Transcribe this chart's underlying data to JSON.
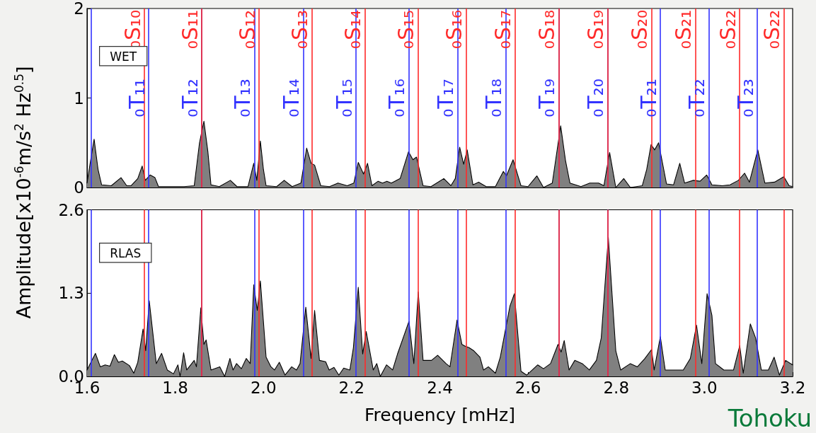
{
  "chart_data": [
    {
      "type": "area",
      "ylabel": "Amplitude[x10$^{-6}$m/s$^{2}$ Hz$^{0.5}$]",
      "xlim": [
        1.6,
        3.2
      ],
      "ylim": [
        0,
        2
      ],
      "yticks": [
        0,
        1,
        2
      ],
      "tick_labels": "y",
      "annotations": [
        "WET"
      ],
      "series": [
        {
          "color": "#808080",
          "x": [
            1.6,
            1.608,
            1.616,
            1.625,
            1.633,
            1.655,
            1.677,
            1.69,
            1.7,
            1.715,
            1.725,
            1.732,
            1.743,
            1.754,
            1.762,
            1.78,
            1.82,
            1.843,
            1.855,
            1.865,
            1.874,
            1.881,
            1.9,
            1.925,
            1.94,
            1.965,
            1.978,
            1.985,
            1.993,
            2.0,
            2.006,
            2.03,
            2.047,
            2.065,
            2.085,
            2.098,
            2.108,
            2.116,
            2.13,
            2.15,
            2.169,
            2.19,
            2.205,
            2.215,
            2.227,
            2.236,
            2.246,
            2.26,
            2.27,
            2.28,
            2.29,
            2.31,
            2.329,
            2.339,
            2.347,
            2.362,
            2.38,
            2.409,
            2.425,
            2.435,
            2.445,
            2.454,
            2.462,
            2.475,
            2.488,
            2.505,
            2.526,
            2.544,
            2.551,
            2.566,
            2.584,
            2.6,
            2.62,
            2.635,
            2.655,
            2.674,
            2.685,
            2.695,
            2.72,
            2.74,
            2.76,
            2.772,
            2.785,
            2.799,
            2.817,
            2.832,
            2.859,
            2.869,
            2.879,
            2.887,
            2.896,
            2.914,
            2.93,
            2.944,
            2.955,
            2.975,
            2.99,
            3.005,
            3.017,
            3.04,
            3.058,
            3.077,
            3.091,
            3.102,
            3.121,
            3.137,
            3.159,
            3.18,
            3.192,
            3.2
          ],
          "values": [
            0.05,
            0.3,
            0.54,
            0.2,
            0.03,
            0.02,
            0.11,
            0.02,
            0.02,
            0.1,
            0.24,
            0.08,
            0.14,
            0.11,
            0.01,
            0.01,
            0.01,
            0.02,
            0.5,
            0.74,
            0.4,
            0.03,
            0.01,
            0.08,
            0.01,
            0.01,
            0.27,
            0.08,
            0.52,
            0.2,
            0.02,
            0.01,
            0.08,
            0.01,
            0.05,
            0.44,
            0.27,
            0.25,
            0.02,
            0.01,
            0.05,
            0.02,
            0.05,
            0.28,
            0.15,
            0.27,
            0.02,
            0.07,
            0.05,
            0.07,
            0.05,
            0.1,
            0.4,
            0.31,
            0.34,
            0.02,
            0.01,
            0.1,
            0.02,
            0.1,
            0.45,
            0.26,
            0.42,
            0.03,
            0.06,
            0.01,
            0.01,
            0.18,
            0.13,
            0.31,
            0.02,
            0.01,
            0.13,
            0.0,
            0.05,
            0.69,
            0.3,
            0.05,
            0.01,
            0.05,
            0.05,
            0.02,
            0.39,
            0.0,
            0.1,
            0.0,
            0.02,
            0.2,
            0.48,
            0.42,
            0.5,
            0.04,
            0.03,
            0.27,
            0.05,
            0.08,
            0.07,
            0.14,
            0.03,
            0.02,
            0.03,
            0.08,
            0.16,
            0.06,
            0.42,
            0.05,
            0.06,
            0.12,
            0.02,
            0.01
          ]
        }
      ],
      "ref_lines": [
        {
          "axis": "x",
          "value": 1.611,
          "label": null,
          "color": "#3333ff"
        },
        {
          "axis": "x",
          "value": 1.736,
          "label": "₀T₁₁",
          "color": "#3333ff"
        },
        {
          "axis": "x",
          "value": 1.858,
          "label": "₀T₁₂",
          "color": "#3333ff"
        },
        {
          "axis": "x",
          "value": 1.977,
          "label": "₀T₁₃",
          "color": "#3333ff"
        },
        {
          "axis": "x",
          "value": 2.094,
          "label": "₀T₁₄",
          "color": "#3333ff"
        },
        {
          "axis": "x",
          "value": 2.21,
          "label": "₀T₁₅",
          "color": "#3333ff"
        },
        {
          "axis": "x",
          "value": 2.325,
          "label": "₀T₁₆",
          "color": "#3333ff"
        },
        {
          "axis": "x",
          "value": 2.439,
          "label": "₀T₁₇",
          "color": "#3333ff"
        },
        {
          "axis": "x",
          "value": 2.553,
          "label": "₀T₁₈",
          "color": "#3333ff"
        },
        {
          "axis": "x",
          "value": 2.667,
          "label": "₀T₁₉",
          "color": "#3333ff"
        },
        {
          "axis": "x",
          "value": 2.776,
          "label": "₀T₂₀",
          "color": "#3333ff"
        },
        {
          "axis": "x",
          "value": 2.899,
          "label": "₀T₂₁",
          "color": "#3333ff"
        },
        {
          "axis": "x",
          "value": 3.011,
          "label": "₀T₂₂",
          "color": "#3333ff"
        },
        {
          "axis": "x",
          "value": 3.123,
          "label": "₀T₂₃",
          "color": "#3333ff"
        },
        {
          "axis": "x",
          "value": 1.727,
          "label": "₀S₁₀",
          "color": "#ff2a2a"
        },
        {
          "axis": "x",
          "value": 1.86,
          "label": "₀S₁₁",
          "color": "#ff2a2a"
        },
        {
          "axis": "x",
          "value": 1.992,
          "label": "₀S₁₂",
          "color": "#ff2a2a"
        },
        {
          "axis": "x",
          "value": 2.114,
          "label": "₀S₁₃",
          "color": "#ff2a2a"
        },
        {
          "axis": "x",
          "value": 2.234,
          "label": "₀S₁₄",
          "color": "#ff2a2a"
        },
        {
          "axis": "x",
          "value": 2.35,
          "label": "₀S₁₅",
          "color": "#ff2a2a"
        },
        {
          "axis": "x",
          "value": 2.461,
          "label": "₀S₁₆",
          "color": "#ff2a2a"
        },
        {
          "axis": "x",
          "value": 2.57,
          "label": "₀S₁₇",
          "color": "#ff2a2a"
        },
        {
          "axis": "x",
          "value": 2.675,
          "label": "₀S₁₈",
          "color": "#ff2a2a"
        },
        {
          "axis": "x",
          "value": 2.78,
          "label": "₀S₁₉",
          "color": "#ff2a2a"
        },
        {
          "axis": "x",
          "value": 2.881,
          "label": "₀S₂₀",
          "color": "#ff2a2a"
        },
        {
          "axis": "x",
          "value": 2.982,
          "label": "₀S₂₁",
          "color": "#ff2a2a"
        },
        {
          "axis": "x",
          "value": 3.08,
          "label": "₀S₂₂",
          "color": "#ff2a2a"
        },
        {
          "axis": "x",
          "value": 3.176,
          "label": "₀S₂₂",
          "color": "#ff2a2a"
        }
      ]
    },
    {
      "type": "area",
      "xlabel": "Frequency [mHz]",
      "xlim": [
        1.6,
        3.2
      ],
      "xticks": [
        1.6,
        1.8,
        {
          "value": 2,
          "label": "2.0"
        },
        2.2,
        2.4,
        2.6,
        2.8,
        {
          "value": 3,
          "label": "3.0"
        },
        3.2
      ],
      "ylim": [
        0,
        2.6
      ],
      "yticks": [
        {
          "value": 0,
          "label": "0.0"
        },
        1.3,
        2.6
      ],
      "annotations": [
        "RLAS",
        "Tohoku"
      ],
      "series": [
        {
          "color": "#808080",
          "x": [
            1.6,
            1.619,
            1.63,
            1.641,
            1.652,
            1.662,
            1.671,
            1.68,
            1.696,
            1.706,
            1.715,
            1.727,
            1.733,
            1.741,
            1.757,
            1.769,
            1.782,
            1.796,
            1.806,
            1.811,
            1.819,
            1.826,
            1.843,
            1.848,
            1.858,
            1.865,
            1.87,
            1.881,
            1.901,
            1.912,
            1.924,
            1.931,
            1.939,
            1.95,
            1.961,
            1.97,
            1.978,
            1.986,
            1.993,
            2.006,
            2.017,
            2.025,
            2.036,
            2.049,
            2.064,
            2.075,
            2.083,
            2.096,
            2.108,
            2.116,
            2.127,
            2.141,
            2.149,
            2.16,
            2.171,
            2.182,
            2.196,
            2.204,
            2.215,
            2.225,
            2.233,
            2.249,
            2.257,
            2.265,
            2.279,
            2.293,
            2.304,
            2.33,
            2.341,
            2.351,
            2.362,
            2.381,
            2.395,
            2.414,
            2.423,
            2.439,
            2.45,
            2.458,
            2.466,
            2.477,
            2.491,
            2.499,
            2.51,
            2.526,
            2.537,
            2.548,
            2.559,
            2.569,
            2.584,
            2.597,
            2.622,
            2.635,
            2.651,
            2.668,
            2.675,
            2.682,
            2.693,
            2.706,
            2.723,
            2.739,
            2.755,
            2.766,
            2.782,
            2.799,
            2.81,
            2.832,
            2.848,
            2.865,
            2.88,
            2.886,
            2.9,
            2.911,
            2.933,
            2.952,
            2.968,
            2.982,
            2.994,
            3.006,
            3.017,
            3.025,
            3.044,
            3.066,
            3.08,
            3.088,
            3.104,
            3.116,
            3.129,
            3.145,
            3.158,
            3.17,
            3.184,
            3.2
          ],
          "values": [
            0.1,
            0.36,
            0.15,
            0.18,
            0.16,
            0.34,
            0.22,
            0.24,
            0.17,
            0.05,
            0.22,
            0.74,
            0.4,
            1.18,
            0.2,
            0.36,
            0.1,
            0.04,
            0.18,
            0.0,
            0.37,
            0.1,
            0.25,
            0.15,
            1.07,
            0.5,
            0.57,
            0.1,
            0.15,
            0.0,
            0.28,
            0.1,
            0.2,
            0.12,
            0.28,
            0.2,
            1.43,
            1.03,
            1.49,
            0.3,
            0.15,
            0.1,
            0.22,
            0.02,
            0.15,
            0.1,
            0.2,
            1.08,
            0.28,
            1.03,
            0.25,
            0.23,
            0.1,
            0.14,
            0.02,
            0.13,
            0.1,
            0.45,
            1.39,
            0.35,
            0.7,
            0.1,
            0.2,
            0.0,
            0.18,
            0.1,
            0.35,
            0.86,
            0.2,
            1.32,
            0.25,
            0.25,
            0.33,
            0.2,
            0.15,
            0.88,
            0.5,
            0.47,
            0.45,
            0.4,
            0.3,
            0.1,
            0.15,
            0.05,
            0.3,
            0.7,
            1.1,
            1.29,
            0.08,
            0.02,
            0.18,
            0.12,
            0.2,
            0.5,
            0.38,
            0.56,
            0.1,
            0.25,
            0.2,
            0.1,
            0.25,
            0.6,
            2.17,
            0.4,
            0.1,
            0.2,
            0.15,
            0.28,
            0.42,
            0.1,
            0.62,
            0.1,
            0.1,
            0.1,
            0.28,
            0.8,
            0.2,
            1.29,
            0.95,
            0.2,
            0.1,
            0.1,
            0.48,
            0.05,
            0.82,
            0.6,
            0.1,
            0.1,
            0.3,
            0.02,
            0.25,
            0.18
          ]
        }
      ],
      "ref_lines": [
        {
          "axis": "x",
          "value": 1.611,
          "color": "#3333ff"
        },
        {
          "axis": "x",
          "value": 1.736,
          "color": "#3333ff"
        },
        {
          "axis": "x",
          "value": 1.858,
          "color": "#3333ff"
        },
        {
          "axis": "x",
          "value": 1.977,
          "color": "#3333ff"
        },
        {
          "axis": "x",
          "value": 2.094,
          "color": "#3333ff"
        },
        {
          "axis": "x",
          "value": 2.21,
          "color": "#3333ff"
        },
        {
          "axis": "x",
          "value": 2.325,
          "color": "#3333ff"
        },
        {
          "axis": "x",
          "value": 2.439,
          "color": "#3333ff"
        },
        {
          "axis": "x",
          "value": 2.553,
          "color": "#3333ff"
        },
        {
          "axis": "x",
          "value": 2.667,
          "color": "#3333ff"
        },
        {
          "axis": "x",
          "value": 2.776,
          "color": "#3333ff"
        },
        {
          "axis": "x",
          "value": 2.899,
          "color": "#3333ff"
        },
        {
          "axis": "x",
          "value": 3.011,
          "color": "#3333ff"
        },
        {
          "axis": "x",
          "value": 3.123,
          "color": "#3333ff"
        },
        {
          "axis": "x",
          "value": 1.727,
          "color": "#ff2a2a"
        },
        {
          "axis": "x",
          "value": 1.86,
          "color": "#ff2a2a"
        },
        {
          "axis": "x",
          "value": 1.992,
          "color": "#ff2a2a"
        },
        {
          "axis": "x",
          "value": 2.114,
          "color": "#ff2a2a"
        },
        {
          "axis": "x",
          "value": 2.234,
          "color": "#ff2a2a"
        },
        {
          "axis": "x",
          "value": 2.35,
          "color": "#ff2a2a"
        },
        {
          "axis": "x",
          "value": 2.461,
          "color": "#ff2a2a"
        },
        {
          "axis": "x",
          "value": 2.57,
          "color": "#ff2a2a"
        },
        {
          "axis": "x",
          "value": 2.675,
          "color": "#ff2a2a"
        },
        {
          "axis": "x",
          "value": 2.78,
          "color": "#ff2a2a"
        },
        {
          "axis": "x",
          "value": 2.881,
          "color": "#ff2a2a"
        },
        {
          "axis": "x",
          "value": 2.982,
          "color": "#ff2a2a"
        },
        {
          "axis": "x",
          "value": 3.08,
          "color": "#ff2a2a"
        },
        {
          "axis": "x",
          "value": 3.176,
          "color": "#ff2a2a"
        }
      ]
    }
  ]
}
